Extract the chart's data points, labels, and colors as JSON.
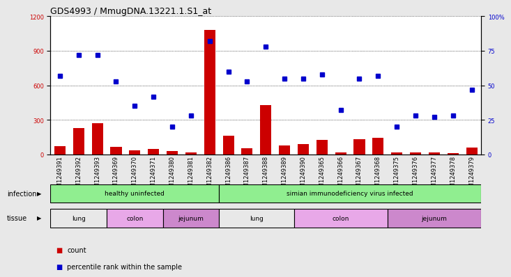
{
  "title": "GDS4993 / MmugDNA.13221.1.S1_at",
  "samples": [
    "GSM1249391",
    "GSM1249392",
    "GSM1249393",
    "GSM1249369",
    "GSM1249370",
    "GSM1249371",
    "GSM1249380",
    "GSM1249381",
    "GSM1249382",
    "GSM1249386",
    "GSM1249387",
    "GSM1249388",
    "GSM1249389",
    "GSM1249390",
    "GSM1249365",
    "GSM1249366",
    "GSM1249367",
    "GSM1249368",
    "GSM1249375",
    "GSM1249376",
    "GSM1249377",
    "GSM1249378",
    "GSM1249379"
  ],
  "counts": [
    70,
    230,
    270,
    65,
    35,
    50,
    30,
    20,
    1080,
    165,
    55,
    430,
    80,
    90,
    125,
    20,
    130,
    145,
    20,
    20,
    15,
    10,
    60
  ],
  "percentile": [
    57,
    72,
    72,
    53,
    35,
    42,
    20,
    28,
    82,
    60,
    53,
    78,
    55,
    55,
    58,
    32,
    55,
    57,
    20,
    28,
    27,
    28,
    47
  ],
  "inf_groups": [
    {
      "label": "healthy uninfected",
      "start": 0,
      "end": 9,
      "color": "#90EE90"
    },
    {
      "label": "simian immunodeficiency virus infected",
      "start": 9,
      "end": 23,
      "color": "#90EE90"
    }
  ],
  "tissue_groups": [
    {
      "label": "lung",
      "start": 0,
      "end": 3,
      "color": "#E8E8E8"
    },
    {
      "label": "colon",
      "start": 3,
      "end": 6,
      "color": "#E8A8E8"
    },
    {
      "label": "jejunum",
      "start": 6,
      "end": 9,
      "color": "#CC88CC"
    },
    {
      "label": "lung",
      "start": 9,
      "end": 13,
      "color": "#E8E8E8"
    },
    {
      "label": "colon",
      "start": 13,
      "end": 18,
      "color": "#E8A8E8"
    },
    {
      "label": "jejunum",
      "start": 18,
      "end": 23,
      "color": "#CC88CC"
    }
  ],
  "left_ylim": [
    0,
    1200
  ],
  "right_ylim": [
    0,
    100
  ],
  "left_yticks": [
    0,
    300,
    600,
    900,
    1200
  ],
  "right_yticks": [
    0,
    25,
    50,
    75,
    100
  ],
  "bar_color": "#CC0000",
  "dot_color": "#0000CC",
  "bg_color": "#E8E8E8",
  "plot_bg": "#FFFFFF",
  "grid_color": "#000000",
  "title_fontsize": 9,
  "tick_fontsize": 6,
  "label_fontsize": 7,
  "annot_fontsize": 6.5
}
